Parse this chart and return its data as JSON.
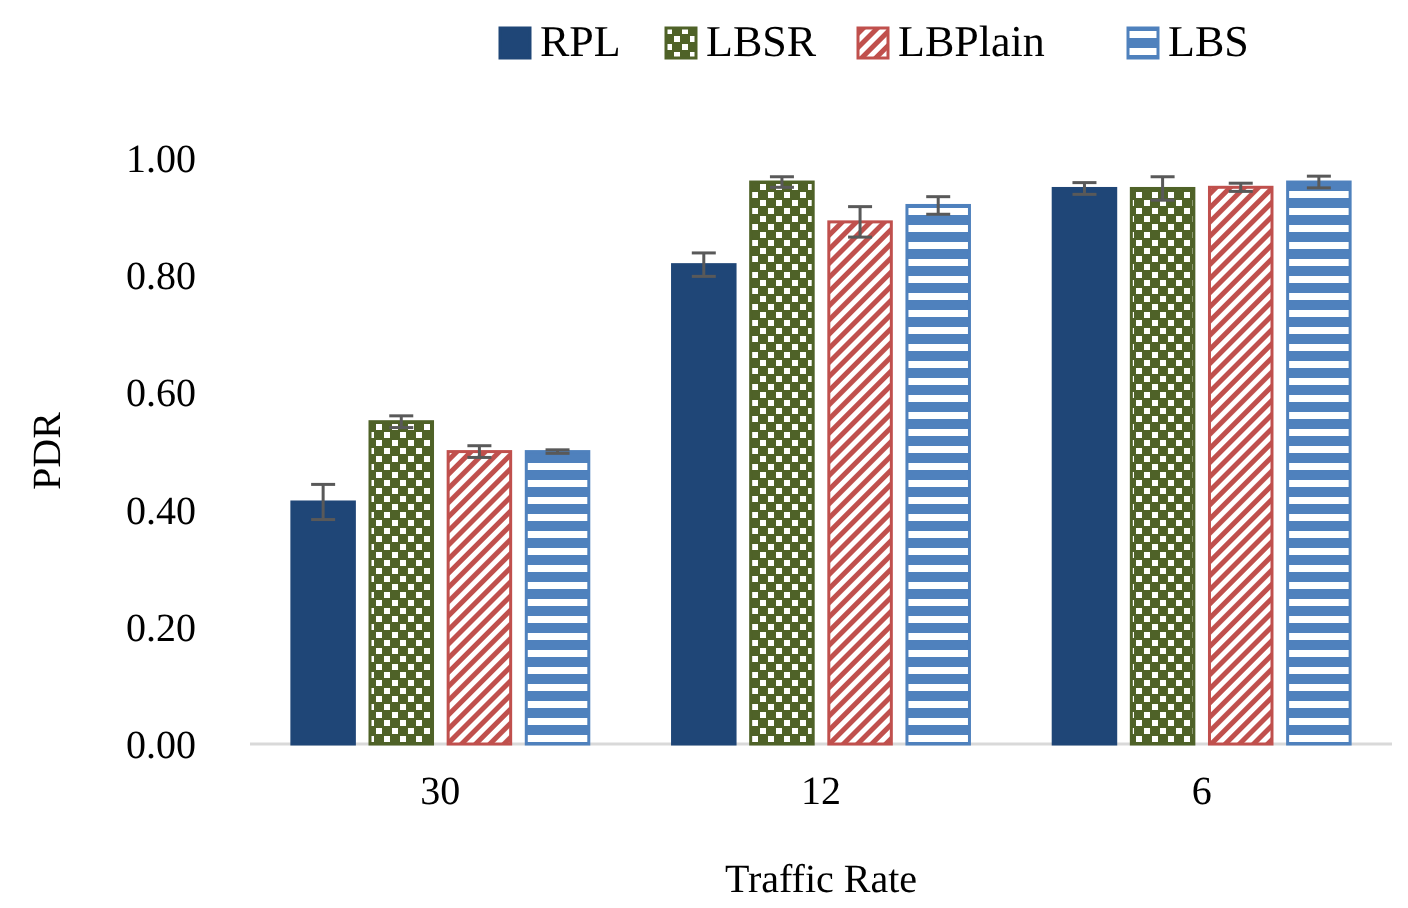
{
  "chart_data": {
    "type": "bar",
    "xlabel": "Traffic Rate",
    "ylabel": "PDR",
    "categories": [
      "30",
      "12",
      "6"
    ],
    "series": [
      {
        "name": "RPL",
        "color": "#1f4677",
        "values": [
          0.413,
          0.818,
          0.948
        ],
        "errors": [
          0.03,
          0.02,
          0.01
        ]
      },
      {
        "name": "LBSR",
        "color": "#4f6228",
        "values": [
          0.55,
          0.959,
          0.948
        ],
        "errors": [
          0.01,
          0.009,
          0.02
        ]
      },
      {
        "name": "LBPlain",
        "color": "#c0504d",
        "values": [
          0.499,
          0.891,
          0.95
        ],
        "errors": [
          0.01,
          0.026,
          0.007
        ]
      },
      {
        "name": "LBS",
        "color": "#4f81bd",
        "values": [
          0.499,
          0.919,
          0.959
        ],
        "errors": [
          0.003,
          0.015,
          0.01
        ]
      }
    ],
    "ylim": [
      0,
      1
    ],
    "yticks": [
      {
        "value": 0,
        "label": "0.00"
      },
      {
        "value": 0.2,
        "label": "0.20"
      },
      {
        "value": 0.4,
        "label": "0.40"
      },
      {
        "value": 0.6,
        "label": "0.60"
      },
      {
        "value": 0.8,
        "label": "0.80"
      },
      {
        "value": 1,
        "label": "1.00"
      }
    ],
    "grid": false,
    "legend": "top"
  }
}
